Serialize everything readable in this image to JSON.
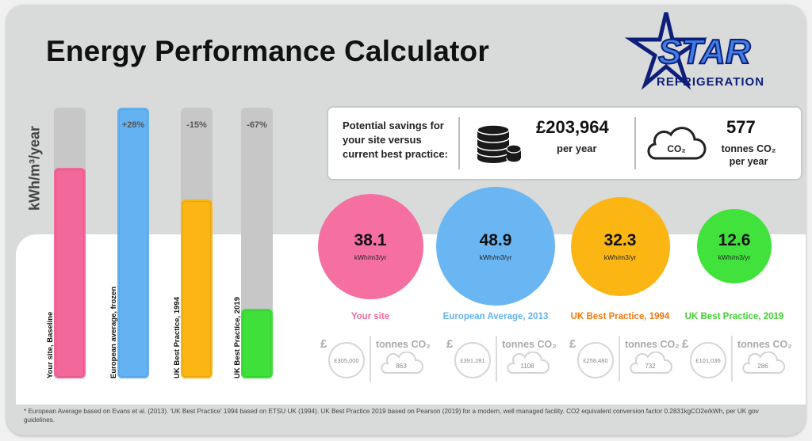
{
  "title": "Energy Performance Calculator",
  "logo": {
    "line1": "STAR",
    "line2": "REFRIGERATION"
  },
  "chart_data": {
    "type": "bar",
    "ylabel": "kWh/m³/year",
    "categories": [
      "Your site, Baseline",
      "European average, frozen",
      "UK Best Practice, 1994",
      "UK Best Practice, 2019"
    ],
    "values": [
      38.1,
      48.9,
      32.3,
      12.6
    ],
    "percent_labels": [
      "",
      "+28%",
      "-15%",
      "-67%"
    ],
    "colors": [
      "#f2689a",
      "#64b2f2",
      "#fbb614",
      "#3fe03a"
    ],
    "ylim": [
      0,
      48.9
    ]
  },
  "savings": {
    "line1": "Potential savings for",
    "line2": "your site versus",
    "line3": "current best practice:",
    "money": "£203,964",
    "money_sub": "per year",
    "co2_icon_text": "CO₂",
    "co2": "577",
    "co2_sub1": "tonnes CO₂",
    "co2_sub2": "per year"
  },
  "circles": [
    {
      "value": "38.1",
      "unit": "kWh/m3/yr",
      "label": "Your site",
      "color": "#f56fa0",
      "label_color": "#f2689a",
      "cost": "£305,000",
      "tonnes": "863"
    },
    {
      "value": "48.9",
      "unit": "kWh/m3/yr",
      "label": "European Average, 2013",
      "color": "#6ab6f3",
      "label_color": "#64b2f2",
      "cost": "£391,281",
      "tonnes": "1108"
    },
    {
      "value": "32.3",
      "unit": "kWh/m3/yr",
      "label": "UK Best Practice, 1994",
      "color": "#fbb614",
      "label_color": "#f5760f",
      "cost": "£258,480",
      "tonnes": "732"
    },
    {
      "value": "12.6",
      "unit": "kWh/m3/yr",
      "label": "UK Best Practice, 2019",
      "color": "#41e23c",
      "label_color": "#3fd12f",
      "cost": "£101,036",
      "tonnes": "286"
    }
  ],
  "mini": {
    "pound": "£",
    "tonnes": "tonnes CO₂"
  },
  "footnote": "* European Average based on Evans et al. (2013). 'UK Best Practice'  1994 based on ETSU UK (1994). UK Best Practice 2019 based on Pearson (2019) for a modern, well managed facility.  CO2 equivalent conversion factor 0.2831kgCO2e/kWh, per UK gov guidelines."
}
